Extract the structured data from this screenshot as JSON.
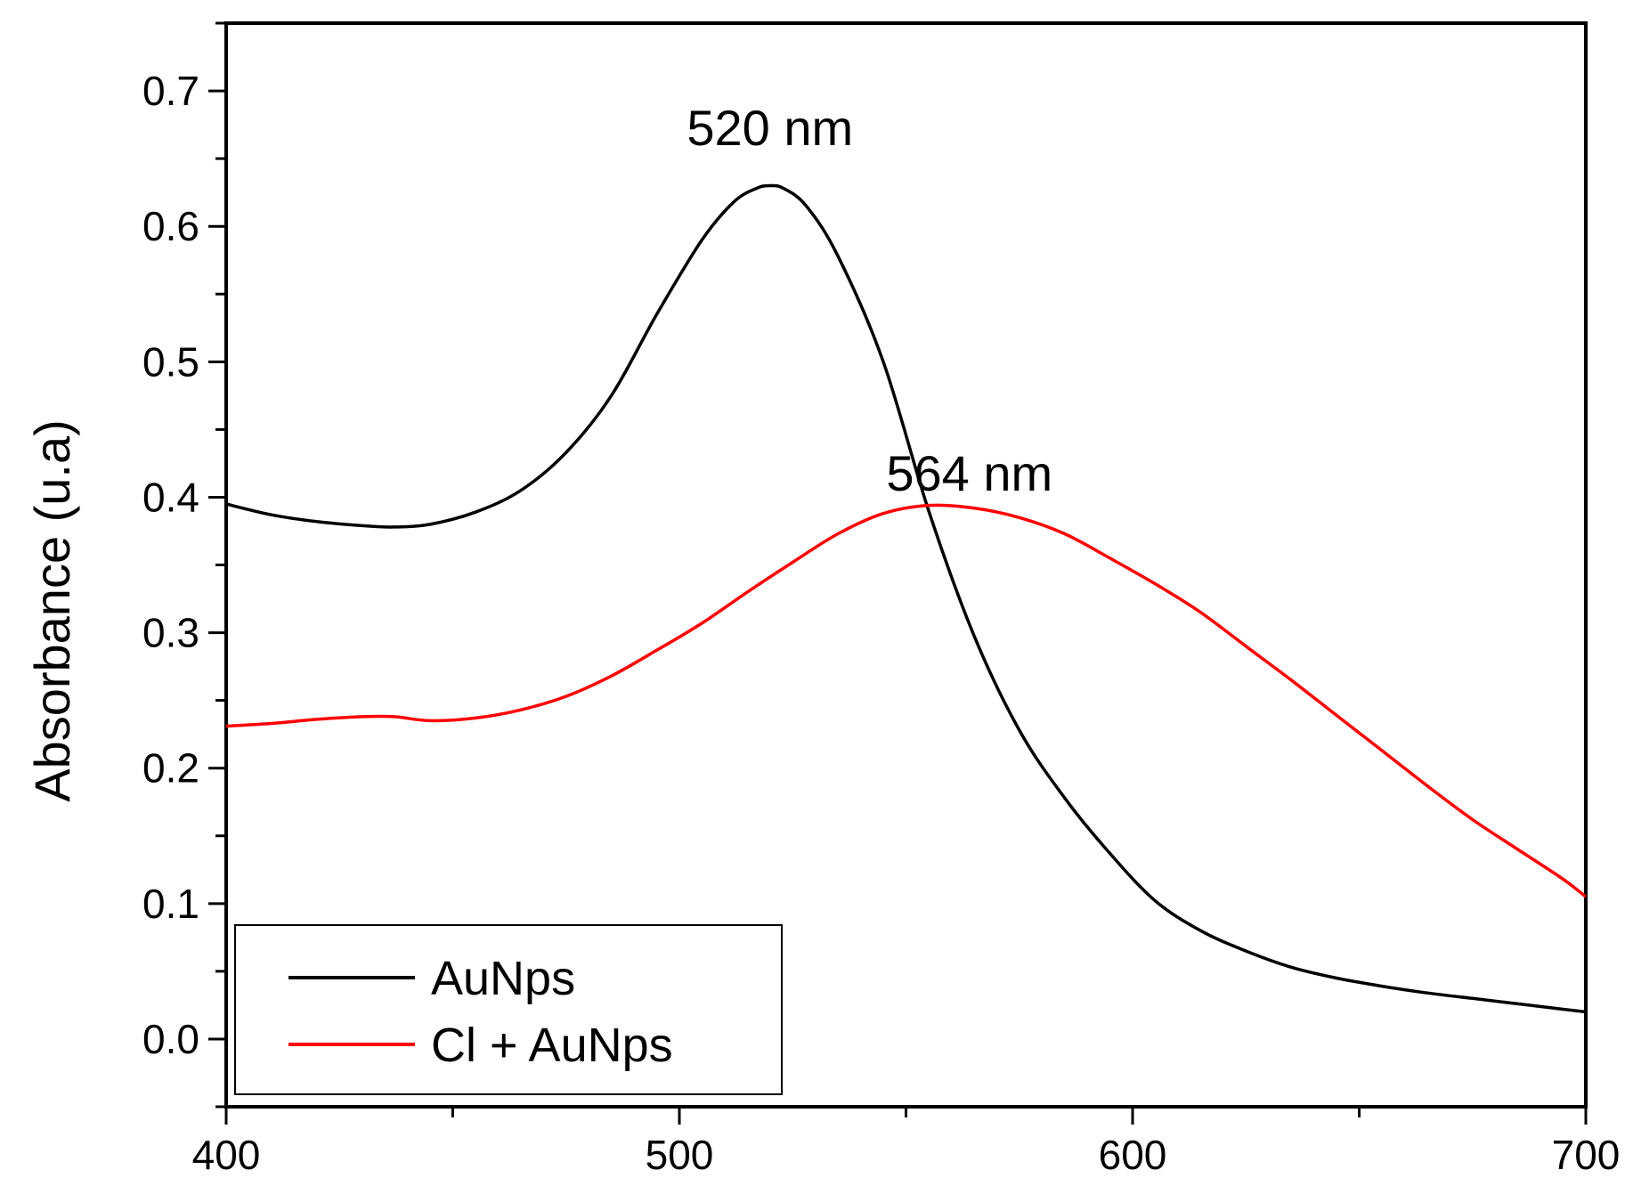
{
  "chart_data": {
    "type": "line",
    "title": "",
    "xlabel": "",
    "ylabel": "Absorbance (u.a)",
    "xlim": [
      400,
      700
    ],
    "ylim": [
      -0.05,
      0.75
    ],
    "xticks": [
      400,
      500,
      600,
      700
    ],
    "xtick_labels": [
      "400",
      "500",
      "600",
      "700"
    ],
    "yticks": [
      0.0,
      0.1,
      0.2,
      0.3,
      0.4,
      0.5,
      0.6,
      0.7
    ],
    "ytick_labels": [
      "0.0",
      "0.1",
      "0.2",
      "0.3",
      "0.4",
      "0.5",
      "0.6",
      "0.7"
    ],
    "grid": false,
    "legend_position": "bottom-left",
    "series": [
      {
        "name": "AuNps",
        "color": "#000000",
        "x": [
          400,
          410,
          420,
          430,
          437,
          445,
          455,
          465,
          475,
          485,
          495,
          505,
          512,
          517,
          520,
          523,
          528,
          535,
          545,
          555,
          565,
          575,
          585,
          595,
          605,
          615,
          625,
          635,
          645,
          655,
          665,
          675,
          685,
          695,
          700
        ],
        "y": [
          0.395,
          0.387,
          0.382,
          0.379,
          0.378,
          0.38,
          0.389,
          0.405,
          0.433,
          0.475,
          0.535,
          0.59,
          0.618,
          0.628,
          0.63,
          0.628,
          0.615,
          0.578,
          0.5,
          0.39,
          0.298,
          0.228,
          0.178,
          0.137,
          0.102,
          0.08,
          0.065,
          0.053,
          0.045,
          0.039,
          0.034,
          0.03,
          0.026,
          0.022,
          0.02
        ]
      },
      {
        "name": "Cl + AuNps",
        "color": "#ff0000",
        "x": [
          400,
          410,
          420,
          430,
          437,
          445,
          455,
          465,
          475,
          485,
          495,
          505,
          515,
          525,
          535,
          545,
          555,
          565,
          575,
          585,
          595,
          605,
          615,
          625,
          635,
          645,
          655,
          665,
          675,
          685,
          695,
          700
        ],
        "y": [
          0.231,
          0.233,
          0.236,
          0.238,
          0.238,
          0.235,
          0.237,
          0.243,
          0.253,
          0.268,
          0.287,
          0.307,
          0.33,
          0.352,
          0.373,
          0.388,
          0.394,
          0.392,
          0.385,
          0.373,
          0.355,
          0.336,
          0.315,
          0.29,
          0.265,
          0.239,
          0.213,
          0.187,
          0.162,
          0.14,
          0.118,
          0.105
        ]
      }
    ],
    "annotations": [
      {
        "text": "520 nm",
        "x": 520,
        "y": 0.66
      },
      {
        "text": "564 nm",
        "x": 564,
        "y": 0.405
      }
    ]
  }
}
